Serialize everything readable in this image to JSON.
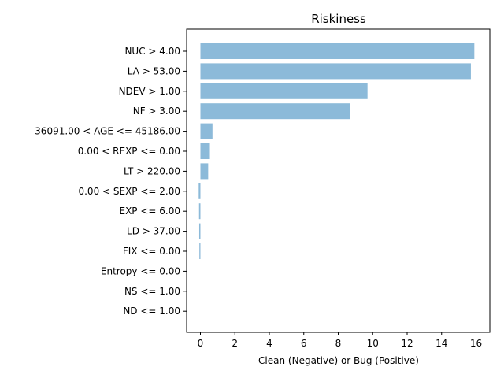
{
  "chart_data": {
    "type": "bar",
    "orientation": "horizontal",
    "title": "Riskiness",
    "xlabel": "Clean (Negative) or Bug (Positive)",
    "ylabel": "",
    "categories": [
      "NUC > 4.00",
      "LA > 53.00",
      "NDEV > 1.00",
      "NF > 3.00",
      "36091.00 < AGE <= 45186.00",
      "0.00 < REXP <= 0.00",
      "LT > 220.00",
      "0.00 < SEXP <= 2.00",
      "EXP <= 6.00",
      "LD > 37.00",
      "FIX <= 0.00",
      "Entropy <= 0.00",
      "NS <= 1.00",
      "ND <= 1.00"
    ],
    "values": [
      15.9,
      15.7,
      9.7,
      8.7,
      0.7,
      0.55,
      0.45,
      -0.1,
      -0.08,
      -0.07,
      -0.06,
      0,
      0,
      0
    ],
    "xlim": [
      -0.8,
      16.8
    ],
    "xticks": [
      0,
      2,
      4,
      6,
      8,
      10,
      12,
      14,
      16
    ],
    "xtick_labels": [
      "0",
      "2",
      "4",
      "6",
      "8",
      "10",
      "12",
      "14",
      "16"
    ],
    "bar_color": "#8cbad9",
    "grid": false
  }
}
